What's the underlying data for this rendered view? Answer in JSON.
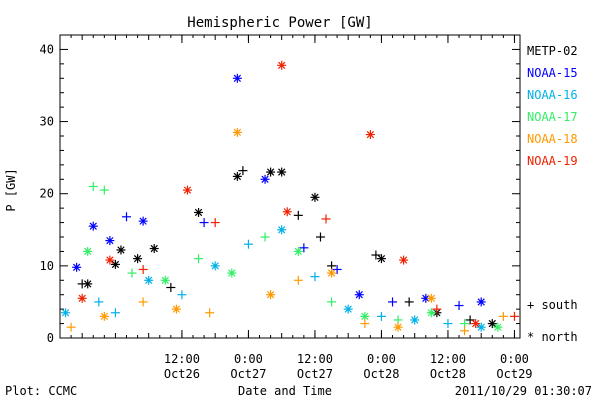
{
  "chart_data": {
    "type": "scatter",
    "title": "Hemispheric Power [GW]",
    "ylabel": "P [GW]",
    "xlabel": "Date and Time",
    "ylim": [
      0,
      42
    ],
    "xlim": [
      "2011-10-25T14:00",
      "2011-10-29T01:00"
    ],
    "y_ticks": [
      0,
      10,
      20,
      30,
      40
    ],
    "x_ticks": [
      {
        "time": "2011-10-26T12:00",
        "label": "12:00",
        "sublabel": "Oct26"
      },
      {
        "time": "2011-10-27T00:00",
        "label": "0:00",
        "sublabel": "Oct27"
      },
      {
        "time": "2011-10-27T12:00",
        "label": "12:00",
        "sublabel": "Oct27"
      },
      {
        "time": "2011-10-28T00:00",
        "label": "0:00",
        "sublabel": "Oct28"
      },
      {
        "time": "2011-10-28T12:00",
        "label": "12:00",
        "sublabel": "Oct28"
      },
      {
        "time": "2011-10-29T00:00",
        "label": "0:00",
        "sublabel": "Oct29"
      }
    ],
    "grid": false,
    "legend_placement": "right",
    "marker_legend": [
      {
        "symbol": "+",
        "label": "south"
      },
      {
        "symbol": "*",
        "label": "north"
      }
    ],
    "series": [
      {
        "name": "METP-02",
        "color": "#000000",
        "points": [
          {
            "x": "2011-10-25T18:00",
            "y": 7.5,
            "m": "+"
          },
          {
            "x": "2011-10-25T19:00",
            "y": 7.5,
            "m": "*"
          },
          {
            "x": "2011-10-26T00:00",
            "y": 10.2,
            "m": "*"
          },
          {
            "x": "2011-10-26T01:00",
            "y": 12.2,
            "m": "*"
          },
          {
            "x": "2011-10-26T04:00",
            "y": 11.0,
            "m": "*"
          },
          {
            "x": "2011-10-26T07:00",
            "y": 12.4,
            "m": "*"
          },
          {
            "x": "2011-10-26T10:00",
            "y": 7.0,
            "m": "+"
          },
          {
            "x": "2011-10-26T15:00",
            "y": 17.4,
            "m": "*"
          },
          {
            "x": "2011-10-26T22:00",
            "y": 22.4,
            "m": "*"
          },
          {
            "x": "2011-10-26T23:00",
            "y": 23.2,
            "m": "+"
          },
          {
            "x": "2011-10-27T04:00",
            "y": 23.0,
            "m": "*"
          },
          {
            "x": "2011-10-27T06:00",
            "y": 23.0,
            "m": "*"
          },
          {
            "x": "2011-10-27T09:00",
            "y": 17.0,
            "m": "+"
          },
          {
            "x": "2011-10-27T12:00",
            "y": 19.5,
            "m": "*"
          },
          {
            "x": "2011-10-27T13:00",
            "y": 14.0,
            "m": "+"
          },
          {
            "x": "2011-10-27T15:00",
            "y": 10.0,
            "m": "+"
          },
          {
            "x": "2011-10-27T23:00",
            "y": 11.5,
            "m": "+"
          },
          {
            "x": "2011-10-28T00:00",
            "y": 11.0,
            "m": "*"
          },
          {
            "x": "2011-10-28T05:00",
            "y": 5.0,
            "m": "+"
          },
          {
            "x": "2011-10-28T10:00",
            "y": 3.5,
            "m": "*"
          },
          {
            "x": "2011-10-28T16:00",
            "y": 2.5,
            "m": "+"
          },
          {
            "x": "2011-10-28T20:00",
            "y": 2.0,
            "m": "*"
          }
        ]
      },
      {
        "name": "NOAA-15",
        "color": "#0000ff",
        "points": [
          {
            "x": "2011-10-25T17:00",
            "y": 9.8,
            "m": "*"
          },
          {
            "x": "2011-10-25T20:00",
            "y": 15.5,
            "m": "*"
          },
          {
            "x": "2011-10-25T23:00",
            "y": 13.5,
            "m": "*"
          },
          {
            "x": "2011-10-26T02:00",
            "y": 16.8,
            "m": "+"
          },
          {
            "x": "2011-10-26T05:00",
            "y": 16.2,
            "m": "*"
          },
          {
            "x": "2011-10-26T16:00",
            "y": 16.0,
            "m": "+"
          },
          {
            "x": "2011-10-26T22:00",
            "y": 36.0,
            "m": "*"
          },
          {
            "x": "2011-10-27T03:00",
            "y": 22.0,
            "m": "*"
          },
          {
            "x": "2011-10-27T10:00",
            "y": 12.5,
            "m": "+"
          },
          {
            "x": "2011-10-27T16:00",
            "y": 9.5,
            "m": "+"
          },
          {
            "x": "2011-10-27T20:00",
            "y": 6.0,
            "m": "*"
          },
          {
            "x": "2011-10-28T02:00",
            "y": 5.0,
            "m": "+"
          },
          {
            "x": "2011-10-28T08:00",
            "y": 5.5,
            "m": "*"
          },
          {
            "x": "2011-10-28T14:00",
            "y": 4.5,
            "m": "+"
          },
          {
            "x": "2011-10-28T18:00",
            "y": 5.0,
            "m": "*"
          }
        ]
      },
      {
        "name": "NOAA-16",
        "color": "#00b0e8",
        "points": [
          {
            "x": "2011-10-25T15:00",
            "y": 3.5,
            "m": "*"
          },
          {
            "x": "2011-10-25T21:00",
            "y": 5.0,
            "m": "+"
          },
          {
            "x": "2011-10-26T00:00",
            "y": 3.5,
            "m": "+"
          },
          {
            "x": "2011-10-26T06:00",
            "y": 8.0,
            "m": "*"
          },
          {
            "x": "2011-10-26T12:00",
            "y": 6.0,
            "m": "+"
          },
          {
            "x": "2011-10-26T18:00",
            "y": 10.0,
            "m": "*"
          },
          {
            "x": "2011-10-27T00:00",
            "y": 13.0,
            "m": "+"
          },
          {
            "x": "2011-10-27T06:00",
            "y": 15.0,
            "m": "*"
          },
          {
            "x": "2011-10-27T12:00",
            "y": 8.5,
            "m": "+"
          },
          {
            "x": "2011-10-27T18:00",
            "y": 4.0,
            "m": "*"
          },
          {
            "x": "2011-10-28T00:00",
            "y": 3.0,
            "m": "+"
          },
          {
            "x": "2011-10-28T06:00",
            "y": 2.5,
            "m": "*"
          },
          {
            "x": "2011-10-28T12:00",
            "y": 2.0,
            "m": "+"
          },
          {
            "x": "2011-10-28T18:00",
            "y": 1.5,
            "m": "*"
          }
        ]
      },
      {
        "name": "NOAA-17",
        "color": "#33ee66",
        "points": [
          {
            "x": "2011-10-25T20:00",
            "y": 21.0,
            "m": "+"
          },
          {
            "x": "2011-10-25T22:00",
            "y": 20.5,
            "m": "+"
          },
          {
            "x": "2011-10-25T19:00",
            "y": 12.0,
            "m": "*"
          },
          {
            "x": "2011-10-26T03:00",
            "y": 9.0,
            "m": "+"
          },
          {
            "x": "2011-10-26T09:00",
            "y": 8.0,
            "m": "*"
          },
          {
            "x": "2011-10-26T15:00",
            "y": 11.0,
            "m": "+"
          },
          {
            "x": "2011-10-26T21:00",
            "y": 9.0,
            "m": "*"
          },
          {
            "x": "2011-10-27T03:00",
            "y": 14.0,
            "m": "+"
          },
          {
            "x": "2011-10-27T09:00",
            "y": 12.0,
            "m": "*"
          },
          {
            "x": "2011-10-27T15:00",
            "y": 5.0,
            "m": "+"
          },
          {
            "x": "2011-10-27T21:00",
            "y": 3.0,
            "m": "*"
          },
          {
            "x": "2011-10-28T03:00",
            "y": 2.5,
            "m": "+"
          },
          {
            "x": "2011-10-28T09:00",
            "y": 3.5,
            "m": "*"
          },
          {
            "x": "2011-10-28T15:00",
            "y": 2.0,
            "m": "+"
          },
          {
            "x": "2011-10-28T21:00",
            "y": 1.5,
            "m": "*"
          }
        ]
      },
      {
        "name": "NOAA-18",
        "color": "#ff9900",
        "points": [
          {
            "x": "2011-10-25T16:00",
            "y": 1.5,
            "m": "+"
          },
          {
            "x": "2011-10-25T22:00",
            "y": 3.0,
            "m": "*"
          },
          {
            "x": "2011-10-26T05:00",
            "y": 5.0,
            "m": "+"
          },
          {
            "x": "2011-10-26T11:00",
            "y": 4.0,
            "m": "*"
          },
          {
            "x": "2011-10-26T17:00",
            "y": 3.5,
            "m": "+"
          },
          {
            "x": "2011-10-26T22:00",
            "y": 28.5,
            "m": "*"
          },
          {
            "x": "2011-10-27T04:00",
            "y": 6.0,
            "m": "*"
          },
          {
            "x": "2011-10-27T09:00",
            "y": 8.0,
            "m": "+"
          },
          {
            "x": "2011-10-27T15:00",
            "y": 9.0,
            "m": "*"
          },
          {
            "x": "2011-10-27T21:00",
            "y": 2.0,
            "m": "+"
          },
          {
            "x": "2011-10-28T03:00",
            "y": 1.5,
            "m": "*"
          },
          {
            "x": "2011-10-28T09:00",
            "y": 5.5,
            "m": "*"
          },
          {
            "x": "2011-10-28T15:00",
            "y": 1.0,
            "m": "+"
          },
          {
            "x": "2011-10-28T22:00",
            "y": 3.0,
            "m": "+"
          }
        ]
      },
      {
        "name": "NOAA-19",
        "color": "#ee2200",
        "points": [
          {
            "x": "2011-10-25T18:00",
            "y": 5.5,
            "m": "*"
          },
          {
            "x": "2011-10-25T23:00",
            "y": 10.8,
            "m": "*"
          },
          {
            "x": "2011-10-26T05:00",
            "y": 9.5,
            "m": "+"
          },
          {
            "x": "2011-10-26T13:00",
            "y": 20.5,
            "m": "*"
          },
          {
            "x": "2011-10-26T18:00",
            "y": 16.0,
            "m": "+"
          },
          {
            "x": "2011-10-27T06:00",
            "y": 37.8,
            "m": "*"
          },
          {
            "x": "2011-10-27T07:00",
            "y": 17.5,
            "m": "*"
          },
          {
            "x": "2011-10-27T14:00",
            "y": 16.5,
            "m": "+"
          },
          {
            "x": "2011-10-27T22:00",
            "y": 28.2,
            "m": "*"
          },
          {
            "x": "2011-10-28T04:00",
            "y": 10.8,
            "m": "*"
          },
          {
            "x": "2011-10-28T10:00",
            "y": 4.0,
            "m": "+"
          },
          {
            "x": "2011-10-28T17:00",
            "y": 2.0,
            "m": "*"
          },
          {
            "x": "2011-10-29T00:00",
            "y": 3.0,
            "m": "+"
          }
        ]
      }
    ]
  },
  "footer": {
    "plot_label": "Plot: CCMC",
    "timestamp": "2011/10/29 01:30:07"
  }
}
